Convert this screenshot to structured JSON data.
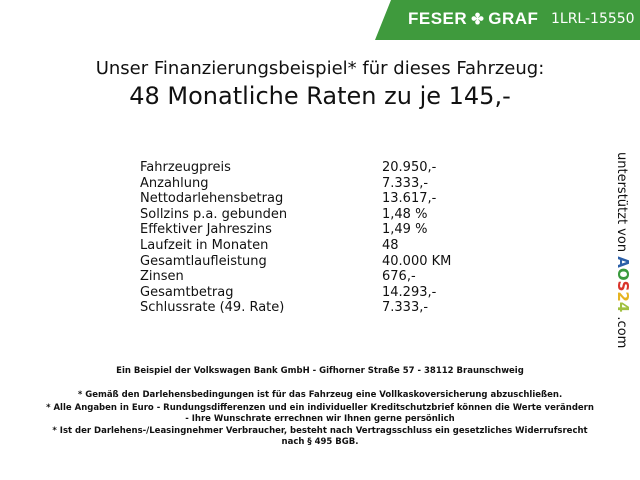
{
  "header": {
    "brand_left": "FESER",
    "brand_right": "GRAF",
    "vehicle_code": "1LRL-15550",
    "brand_color": "#3f9a3d"
  },
  "title": {
    "line1": "Unser Finanzierungsbeispiel* für dieses Fahrzeug:",
    "line2": "48 Monatliche Raten zu je 145,-"
  },
  "rows": [
    {
      "label": "Fahrzeugpreis",
      "value": "20.950,-"
    },
    {
      "label": "Anzahlung",
      "value": "7.333,-"
    },
    {
      "label": "Nettodarlehensbetrag",
      "value": "13.617,-"
    },
    {
      "label": "Sollzins p.a. gebunden",
      "value": "1,48 %"
    },
    {
      "label": "Effektiver Jahreszins",
      "value": "1,49 %"
    },
    {
      "label": "Laufzeit in Monaten",
      "value": "48"
    },
    {
      "label": "Gesamtlaufleistung",
      "value": "40.000 KM"
    },
    {
      "label": "Zinsen",
      "value": "676,-"
    },
    {
      "label": "Gesamtbetrag",
      "value": "14.293,-"
    },
    {
      "label": "Schlussrate (49. Rate)",
      "value": "7.333,-"
    }
  ],
  "side": {
    "text": "unterstützt von",
    "logo": "AOS24",
    "suffix": ".com"
  },
  "footer": {
    "bank": "Ein Beispiel der Volkswagen Bank GmbH - Gifhorner Straße 57 - 38112 Braunschweig",
    "note1": "* Gemäß den Darlehensbedingungen ist für das Fahrzeug eine Vollkaskoversicherung abzuschließen.",
    "note2a": "* Alle Angaben in Euro - Rundungsdifferenzen und ein individueller Kreditschutzbrief können die Werte verändern",
    "note2b": "- Ihre Wunschrate errechnen wir Ihnen gerne persönlich",
    "note3a": "* Ist der Darlehens-/Leasingnehmer Verbraucher, besteht nach Vertragsschluss ein gesetzliches Widerrufsrecht",
    "note3b": "nach § 495 BGB."
  }
}
